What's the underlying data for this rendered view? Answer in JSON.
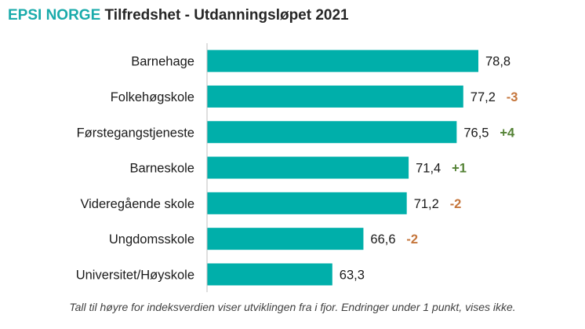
{
  "title": {
    "brand": "EPSI NORGE",
    "rest": "Tilfredshet - Utdanningsløpet 2021"
  },
  "footnote": "Tall til høyre for indeksverdien viser utviklingen fra i fjor. Endringer under 1 punkt, vises ikke.",
  "colors": {
    "bar": "#00afaa",
    "brand": "#1aabab",
    "positive": "#548235",
    "negative": "#c5763c",
    "axis": "#bfbfbf"
  },
  "chart_data": {
    "type": "bar",
    "orientation": "horizontal",
    "categories": [
      "Barnehage",
      "Folkehøgskole",
      "Førstegangstjeneste",
      "Barneskole",
      "Videregående skole",
      "Ungdomsskole",
      "Universitet/Høyskole"
    ],
    "values": [
      78.8,
      77.2,
      76.5,
      71.4,
      71.2,
      66.6,
      63.3
    ],
    "value_labels": [
      "78,8",
      "77,2",
      "76,5",
      "71,4",
      "71,2",
      "66,6",
      "63,3"
    ],
    "changes": [
      "",
      "-3",
      "+4",
      "+1",
      "-2",
      "-2",
      ""
    ],
    "xlim": [
      50,
      80
    ],
    "grid": false,
    "legend": "none"
  }
}
